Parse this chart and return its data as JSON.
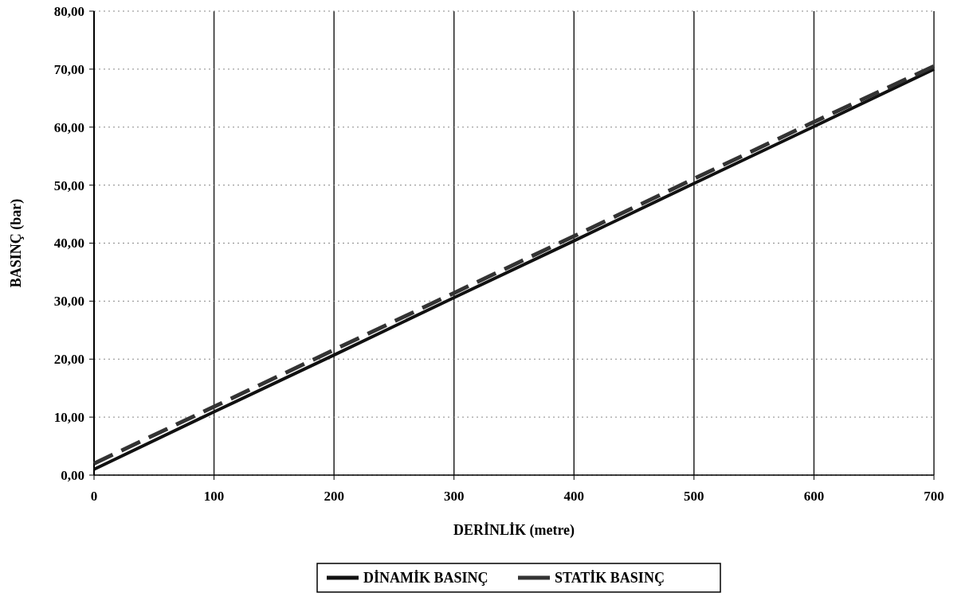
{
  "chart_data": {
    "type": "line",
    "xlabel": "DERİNLİK (metre)",
    "ylabel": "BASINÇ (bar)",
    "x": [
      0,
      100,
      200,
      300,
      400,
      500,
      600,
      700
    ],
    "series": [
      {
        "name": "DİNAMİK BASINÇ",
        "color": "#111111",
        "line_style": "solid",
        "values": [
          1.0,
          10.9,
          20.7,
          30.6,
          40.4,
          50.3,
          60.1,
          70.0
        ]
      },
      {
        "name": "STATİK BASINÇ",
        "color": "#333333",
        "line_style": "dashed",
        "values": [
          2.0,
          11.8,
          21.6,
          31.4,
          41.2,
          51.1,
          60.9,
          70.5
        ]
      }
    ],
    "xlim": [
      0,
      700
    ],
    "xticks": [
      0,
      100,
      200,
      300,
      400,
      500,
      600,
      700
    ],
    "ylim": [
      0,
      80
    ],
    "yticks": [
      {
        "value": 0,
        "label": "0,00"
      },
      {
        "value": 10,
        "label": "10,00"
      },
      {
        "value": 20,
        "label": "20,00"
      },
      {
        "value": 30,
        "label": "30,00"
      },
      {
        "value": 40,
        "label": "40,00"
      },
      {
        "value": 50,
        "label": "50,00"
      },
      {
        "value": 60,
        "label": "60,00"
      },
      {
        "value": 70,
        "label": "70,00"
      },
      {
        "value": 80,
        "label": "80,00"
      }
    ],
    "grid": true,
    "legend": "bottom"
  }
}
